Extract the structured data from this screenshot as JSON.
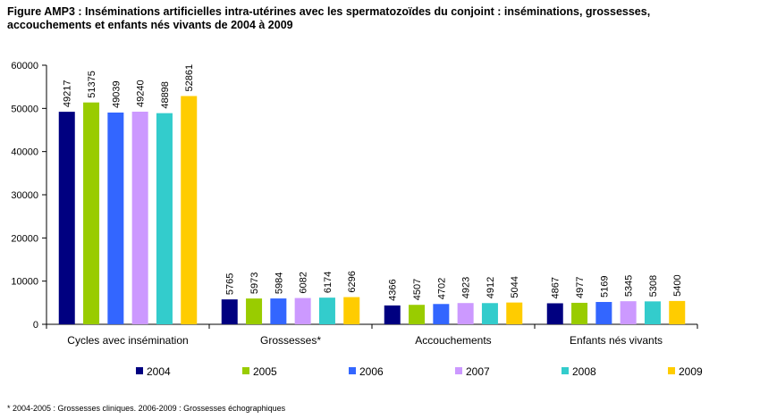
{
  "title_line1": "Figure AMP3 : Inséminations artificielles intra-utérines avec les spermatozoïdes du conjoint : inséminations, grossesses,",
  "title_line2": "accouchements et enfants nés vivants de 2004 à 2009",
  "footnote": "* 2004-2005 : Grossesses cliniques. 2006-2009 : Grossesses échographiques",
  "chart_data": {
    "type": "bar",
    "title": "Figure AMP3 : Inséminations artificielles intra-utérines avec les spermatozoïdes du conjoint : inséminations, grossesses, accouchements et enfants nés vivants de 2004 à 2009",
    "categories": [
      "Cycles avec insémination",
      "Grossesses*",
      "Accouchements",
      "Enfants nés vivants"
    ],
    "series": [
      {
        "name": "2004",
        "color": "#000080",
        "values": [
          49217,
          5765,
          4366,
          4867
        ]
      },
      {
        "name": "2005",
        "color": "#99CC00",
        "values": [
          51375,
          5973,
          4507,
          4977
        ]
      },
      {
        "name": "2006",
        "color": "#3366FF",
        "values": [
          49039,
          5984,
          4702,
          5169
        ]
      },
      {
        "name": "2007",
        "color": "#CC99FF",
        "values": [
          49240,
          6082,
          4923,
          5345
        ]
      },
      {
        "name": "2008",
        "color": "#33CCCC",
        "values": [
          48898,
          6174,
          4912,
          5308
        ]
      },
      {
        "name": "2009",
        "color": "#FFCC00",
        "values": [
          52861,
          6296,
          5044,
          5400
        ]
      }
    ],
    "yticks": [
      "0",
      "10000",
      "20000",
      "30000",
      "40000",
      "50000",
      "60000"
    ],
    "ylim": [
      0,
      60000
    ],
    "xlabel": "",
    "ylabel": "",
    "grid": false,
    "data_labels": true,
    "legend_position": "bottom"
  }
}
